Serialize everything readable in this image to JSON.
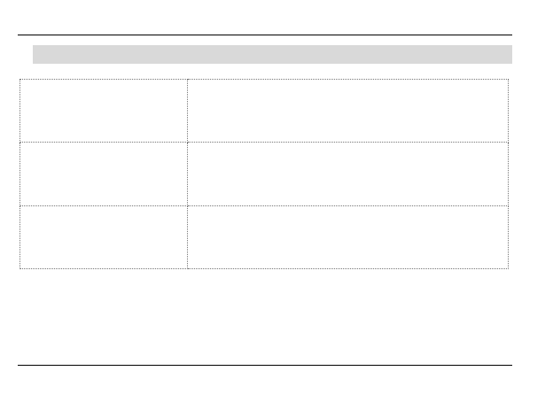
{
  "colors": {
    "rule": "#000000",
    "shade_bar": "#d9d9d9",
    "cell_border": "#777777"
  },
  "shade_bar": {
    "text": ""
  },
  "table": {
    "rows": [
      {
        "cells": [
          "",
          ""
        ]
      },
      {
        "cells": [
          "",
          ""
        ]
      },
      {
        "cells": [
          "",
          ""
        ]
      }
    ]
  }
}
